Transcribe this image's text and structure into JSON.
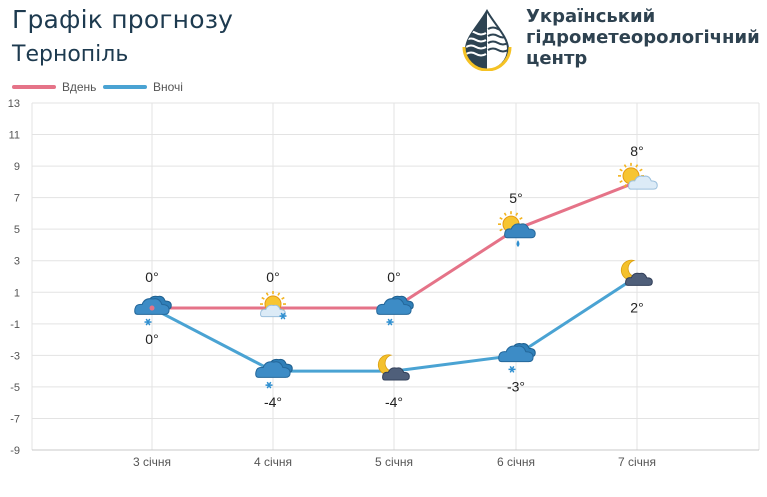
{
  "header": {
    "title": "Графік прогнозу",
    "city": "Тернопіль",
    "org_lines": [
      "Український",
      "гідрометеорологічний",
      "центр"
    ]
  },
  "colors": {
    "day": "#e57388",
    "night": "#4aa3d3",
    "title_text": "#1d3a4f",
    "grid": "#e3e3e3",
    "logo_yellow": "#f5c224",
    "logo_dark": "#2d4352"
  },
  "chart_data": {
    "type": "line",
    "title": "Графік прогнозу",
    "subtitle": "Тернопіль",
    "categories": [
      "3 січня",
      "4 січня",
      "5 січня",
      "6 січня",
      "7 січня"
    ],
    "series": [
      {
        "name": "Вдень",
        "values": [
          0,
          0,
          0,
          5,
          8
        ],
        "labels": [
          "0°",
          "0°",
          "0°",
          "5°",
          "8°"
        ],
        "icons": [
          "cloud-snow-icon",
          "sun-cloud-snow-icon",
          "cloud-snow-icon",
          "sun-cloud-rain-icon",
          "sun-cloud-icon"
        ]
      },
      {
        "name": "Вночі",
        "values": [
          0,
          -4,
          -4,
          -3,
          2
        ],
        "labels": [
          "0°",
          "-4°",
          "-4°",
          "-3°",
          "2°"
        ],
        "icons": [
          "cloud-snow-icon",
          "cloud-snow-icon",
          "moon-cloud-icon",
          "cloud-snow-icon",
          "moon-cloud-icon"
        ]
      }
    ],
    "y_ticks": [
      13,
      11,
      9,
      7,
      5,
      3,
      1,
      -1,
      -3,
      -5,
      -7,
      -9
    ],
    "ylim": [
      -9,
      13
    ],
    "grid": true,
    "legend_position": "top-left"
  }
}
